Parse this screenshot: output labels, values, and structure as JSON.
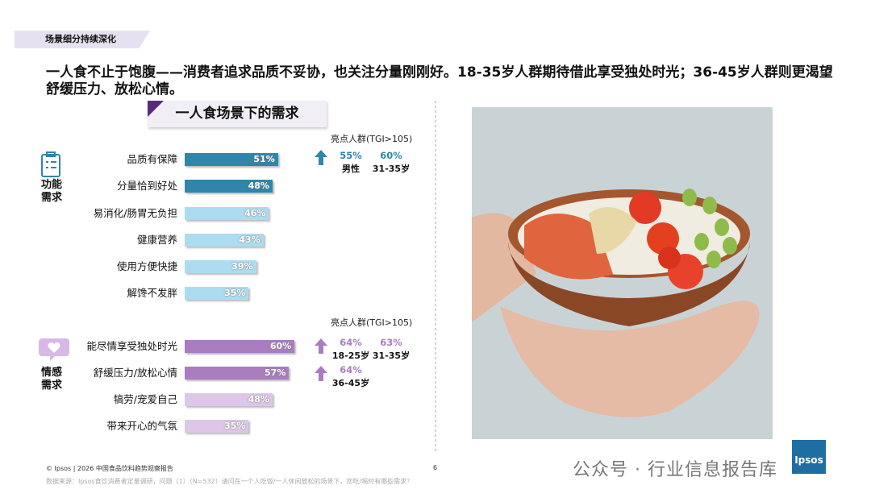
{
  "header": {
    "tag": "场景细分持续深化",
    "headline": "一人食不止于饱腹——消费者追求品质不妥协，也关注分量刚刚好。18-35岁人群期待借此享受独处时光；36-45岁人群则更渴望舒缓压力、放松心情。"
  },
  "panel_title": "一人食场景下的需求",
  "chart_data": [
    {
      "type": "hbar",
      "group_label": "功能需求",
      "categories": [
        "品质有保障",
        "分量恰到好处",
        "易消化/肠胃无负担",
        "健康营养",
        "使用方便快捷",
        "解馋不发胖"
      ],
      "values": [
        51,
        48,
        46,
        43,
        39,
        35
      ],
      "value_labels": [
        "51%",
        "48%",
        "46%",
        "43%",
        "39%",
        "35%"
      ],
      "colors": [
        "#2f86a8",
        "#2f86a8",
        "#acdcf0",
        "#acdcf0",
        "#acdcf0",
        "#acdcf0"
      ]
    },
    {
      "type": "hbar",
      "group_label": "情感需求",
      "categories": [
        "能尽情享受独处时光",
        "舒缓压力/放松心情",
        "犒劳/宠爱自己",
        "带来开心的气氛"
      ],
      "values": [
        60,
        57,
        48,
        35
      ],
      "value_labels": [
        "60%",
        "57%",
        "48%",
        "35%"
      ],
      "colors": [
        "#a97dc0",
        "#a97dc0",
        "#ddc6e8",
        "#ddc6e8"
      ]
    }
  ],
  "highlights": [
    {
      "header": "亮点人群(TGI>105)",
      "rows": [
        [
          {
            "value": "55%",
            "label": "男性"
          },
          {
            "value": "60%",
            "label": "31-35岁"
          }
        ]
      ]
    },
    {
      "header": "亮点人群(TGI>105)",
      "rows": [
        [
          {
            "value": "64%",
            "label": "18-25岁"
          },
          {
            "value": "63%",
            "label": "31-35岁"
          }
        ],
        [
          {
            "value": "64%",
            "label": "36-45岁"
          }
        ]
      ]
    }
  ],
  "footer": {
    "copyright": "© Ipsos | 2026 中国食品饮料趋势观察报告",
    "page": "6",
    "source": "数据来源：Ipsos食饮消费者定量调研，问题（1）（N=532）请问在一个人吃饭/一人休闲放松的场景下，您吃/喝时有哪些需求？",
    "watermark": "公众号 · 行业信息报告库",
    "logo": "Ipsos"
  }
}
